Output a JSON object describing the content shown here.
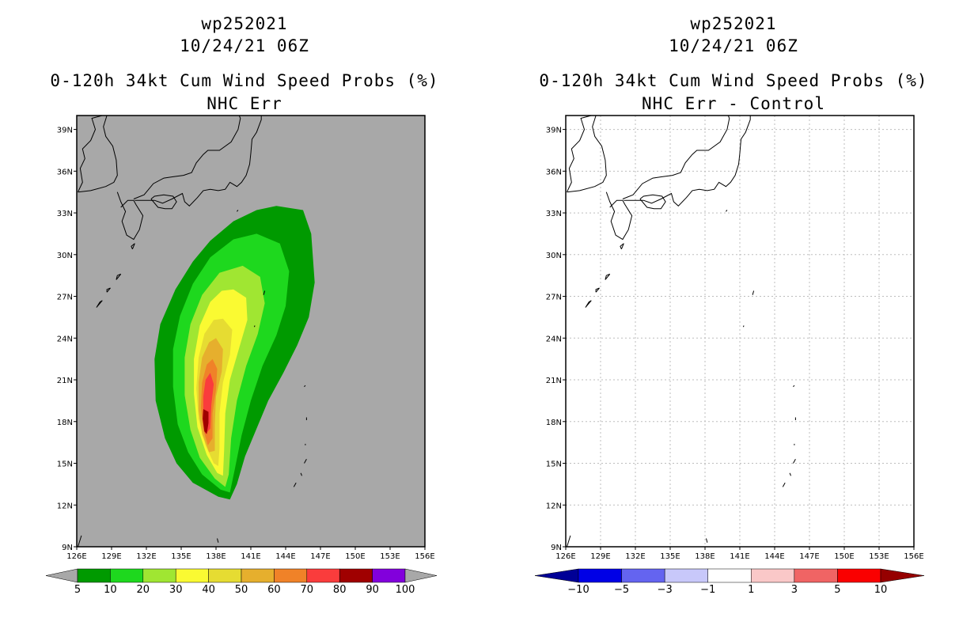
{
  "chart_data": [
    {
      "type": "filled-contour-map",
      "storm_id": "wp252021",
      "datetime": "10/24/21 06Z",
      "title": "0-120h 34kt Cum Wind Speed Probs (%)",
      "subtitle": "NHC Err",
      "background_color": "#a8a8a8",
      "grid": false,
      "xlim": [
        126,
        156
      ],
      "ylim": [
        9,
        40
      ],
      "x_ticks": [
        "126E",
        "129E",
        "132E",
        "135E",
        "138E",
        "141E",
        "144E",
        "147E",
        "150E",
        "153E",
        "156E"
      ],
      "y_ticks": [
        "9N",
        "12N",
        "15N",
        "18N",
        "21N",
        "24N",
        "27N",
        "30N",
        "33N",
        "36N",
        "39N"
      ],
      "colorbar": {
        "labels": [
          "5",
          "10",
          "20",
          "30",
          "40",
          "50",
          "60",
          "70",
          "80",
          "90",
          "100"
        ],
        "colors": [
          "#009a00",
          "#1ed81e",
          "#a0e632",
          "#fafa32",
          "#e6dc32",
          "#e6af2d",
          "#f08228",
          "#fa3c3c",
          "#a00000",
          "#8200dc"
        ],
        "extend_colors": [
          "#a8a8a8",
          "#a8a8a8"
        ]
      },
      "contours": [
        {
          "level": 5,
          "color": "#009a00",
          "poly": [
            [
              143.2,
              33.5
            ],
            [
              145.5,
              33.2
            ],
            [
              146.2,
              31.5
            ],
            [
              146.5,
              28
            ],
            [
              146,
              25.5
            ],
            [
              145,
              23.5
            ],
            [
              143.8,
              21.5
            ],
            [
              142.5,
              19.5
            ],
            [
              141.5,
              17.5
            ],
            [
              140.5,
              15.5
            ],
            [
              139.8,
              13.5
            ],
            [
              139.2,
              12.4
            ],
            [
              138.2,
              12.6
            ],
            [
              136,
              13.6
            ],
            [
              134.6,
              15
            ],
            [
              133.6,
              16.8
            ],
            [
              132.8,
              19.5
            ],
            [
              132.7,
              22.5
            ],
            [
              133.2,
              25
            ],
            [
              134.5,
              27.5
            ],
            [
              136,
              29.5
            ],
            [
              137.5,
              31
            ],
            [
              139.5,
              32.4
            ],
            [
              141.5,
              33.2
            ]
          ]
        },
        {
          "level": 10,
          "color": "#1ed81e",
          "poly": [
            [
              141.5,
              31.5
            ],
            [
              143.5,
              30.8
            ],
            [
              144.3,
              28.8
            ],
            [
              144,
              26.3
            ],
            [
              143.2,
              24.2
            ],
            [
              142,
              22
            ],
            [
              141,
              19.5
            ],
            [
              140.2,
              17
            ],
            [
              139.6,
              14.5
            ],
            [
              139.2,
              12.9
            ],
            [
              138.4,
              13.1
            ],
            [
              136.8,
              14.2
            ],
            [
              135.6,
              15.8
            ],
            [
              134.7,
              17.8
            ],
            [
              134.3,
              20.5
            ],
            [
              134.3,
              23.2
            ],
            [
              134.9,
              25.6
            ],
            [
              136,
              27.9
            ],
            [
              137.5,
              29.8
            ],
            [
              139.5,
              31.1
            ]
          ]
        },
        {
          "level": 20,
          "color": "#a0e632",
          "poly": [
            [
              140.3,
              29.2
            ],
            [
              141.8,
              28.4
            ],
            [
              142.2,
              26.5
            ],
            [
              141.6,
              24.3
            ],
            [
              140.6,
              22
            ],
            [
              139.8,
              19.5
            ],
            [
              139.3,
              16.8
            ],
            [
              139.1,
              14.2
            ],
            [
              138.8,
              13.3
            ],
            [
              137.9,
              13.9
            ],
            [
              136.6,
              15.4
            ],
            [
              135.8,
              17.4
            ],
            [
              135.3,
              19.9
            ],
            [
              135.3,
              22.6
            ],
            [
              135.8,
              25
            ],
            [
              136.8,
              27.1
            ],
            [
              138.3,
              28.7
            ]
          ]
        },
        {
          "level": 30,
          "color": "#fafa32",
          "poly": [
            [
              139.5,
              27.5
            ],
            [
              140.6,
              26.9
            ],
            [
              140.7,
              25.3
            ],
            [
              140,
              23.3
            ],
            [
              139.2,
              21
            ],
            [
              138.8,
              18.6
            ],
            [
              138.7,
              16
            ],
            [
              138.6,
              14.1
            ],
            [
              138.1,
              14.3
            ],
            [
              137.2,
              15.6
            ],
            [
              136.4,
              17.6
            ],
            [
              136.1,
              20
            ],
            [
              136.1,
              22.5
            ],
            [
              136.6,
              24.9
            ],
            [
              137.5,
              26.6
            ],
            [
              138.5,
              27.4
            ]
          ]
        },
        {
          "level": 40,
          "color": "#e6dc32",
          "poly": [
            [
              138.6,
              25.4
            ],
            [
              139.4,
              24.6
            ],
            [
              139.2,
              22.8
            ],
            [
              138.6,
              20.8
            ],
            [
              138.3,
              18.6
            ],
            [
              138.3,
              16.1
            ],
            [
              138.2,
              14.8
            ],
            [
              137.8,
              15
            ],
            [
              137.1,
              16.3
            ],
            [
              136.5,
              18.2
            ],
            [
              136.3,
              20.4
            ],
            [
              136.5,
              22.6
            ],
            [
              137,
              24.3
            ],
            [
              137.8,
              25.3
            ]
          ]
        },
        {
          "level": 50,
          "color": "#e6af2d",
          "poly": [
            [
              138,
              24
            ],
            [
              138.6,
              23.2
            ],
            [
              138.5,
              21.6
            ],
            [
              138,
              19.8
            ],
            [
              137.9,
              17.8
            ],
            [
              137.9,
              15.9
            ],
            [
              137.4,
              15.8
            ],
            [
              136.8,
              17.1
            ],
            [
              136.5,
              18.8
            ],
            [
              136.5,
              20.8
            ],
            [
              136.8,
              22.6
            ],
            [
              137.4,
              23.7
            ]
          ]
        },
        {
          "level": 60,
          "color": "#f08228",
          "poly": [
            [
              137.7,
              22.5
            ],
            [
              138.1,
              21.8
            ],
            [
              138,
              20.3
            ],
            [
              137.7,
              18.6
            ],
            [
              137.7,
              16.8
            ],
            [
              137.3,
              16.3
            ],
            [
              136.9,
              17.4
            ],
            [
              136.7,
              19
            ],
            [
              136.8,
              20.8
            ],
            [
              137.2,
              22.1
            ]
          ]
        },
        {
          "level": 70,
          "color": "#fa3c3c",
          "poly": [
            [
              137.5,
              21.5
            ],
            [
              137.8,
              20.7
            ],
            [
              137.6,
              19.2
            ],
            [
              137.5,
              17.5
            ],
            [
              137.1,
              17.1
            ],
            [
              136.9,
              18.2
            ],
            [
              136.9,
              19.8
            ],
            [
              137.1,
              21
            ]
          ]
        },
        {
          "level": 80,
          "color": "#a00000",
          "poly": [
            [
              136.9,
              18.9
            ],
            [
              137.35,
              18.7
            ],
            [
              137.35,
              17.9
            ],
            [
              137.2,
              17.1
            ],
            [
              137,
              17.3
            ],
            [
              136.85,
              18.2
            ]
          ]
        }
      ]
    },
    {
      "type": "filled-contour-map",
      "storm_id": "wp252021",
      "datetime": "10/24/21 06Z",
      "title": "0-120h 34kt Cum Wind Speed Probs (%)",
      "subtitle": "NHC Err - Control",
      "background_color": "#ffffff",
      "grid": true,
      "xlim": [
        126,
        156
      ],
      "ylim": [
        9,
        40
      ],
      "x_ticks": [
        "126E",
        "129E",
        "132E",
        "135E",
        "138E",
        "141E",
        "144E",
        "147E",
        "150E",
        "153E",
        "156E"
      ],
      "y_ticks": [
        "9N",
        "12N",
        "15N",
        "18N",
        "21N",
        "24N",
        "27N",
        "30N",
        "33N",
        "36N",
        "39N"
      ],
      "colorbar": {
        "labels": [
          "-10",
          "-5",
          "-3",
          "-1",
          "1",
          "3",
          "5",
          "10"
        ],
        "colors": [
          "#0000e6",
          "#6464f0",
          "#c8c8fa",
          "#ffffff",
          "#fac8c8",
          "#f06464",
          "#fa0000"
        ],
        "extend_colors": [
          "#000096",
          "#960000"
        ]
      },
      "contours": []
    }
  ]
}
